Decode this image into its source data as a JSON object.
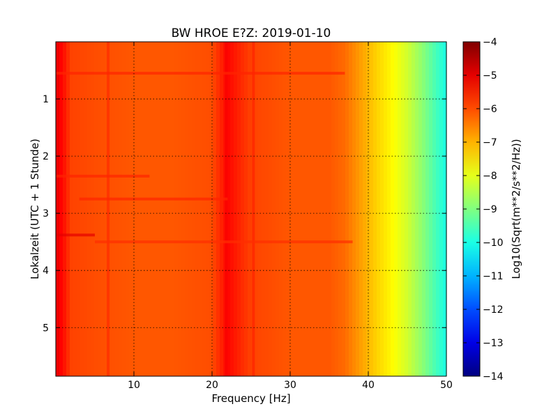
{
  "chart_data": {
    "type": "heatmap",
    "title": "BW HROE E?Z: 2019-01-10",
    "xlabel": "Frequency [Hz]",
    "ylabel": "Lokalzeit (UTC + 1 Stunde)",
    "xlim": [
      0,
      50
    ],
    "ylim": [
      5.85,
      0
    ],
    "x_ticks": [
      10,
      20,
      30,
      40,
      50
    ],
    "y_ticks": [
      1,
      2,
      3,
      4,
      5
    ],
    "grid": true,
    "colorbar": {
      "label": "Log10(Sqrt(m**2/s**2/Hz))",
      "range": [
        -14,
        -4
      ],
      "ticks": [
        -4,
        -5,
        -6,
        -7,
        -8,
        -9,
        -10,
        -11,
        -12,
        -13,
        -14
      ],
      "colormap": "jet"
    },
    "frequency_profile": {
      "frequencies_hz": [
        0,
        1,
        2,
        5,
        10,
        15,
        20,
        22,
        25,
        30,
        35,
        37,
        39,
        41,
        43,
        45,
        47,
        49,
        50
      ],
      "log10_amplitude": [
        -5.0,
        -5.4,
        -5.9,
        -6.0,
        -6.1,
        -6.1,
        -6.0,
        -5.3,
        -5.9,
        -6.1,
        -6.1,
        -6.3,
        -6.8,
        -7.3,
        -7.7,
        -8.2,
        -8.9,
        -9.7,
        -10.0
      ]
    },
    "narrow_band_lines": [
      {
        "frequency_hz": 21.8,
        "log10_amplitude": -5.2
      },
      {
        "frequency_hz": 25.3,
        "log10_amplitude": -5.6
      },
      {
        "frequency_hz": 6.7,
        "log10_amplitude": -5.7
      }
    ],
    "time_bands": [
      {
        "time_h": 0.55,
        "freq_range_hz": [
          0,
          37
        ],
        "log10_amplitude": -5.6
      },
      {
        "time_h": 2.35,
        "freq_range_hz": [
          0,
          12
        ],
        "log10_amplitude": -5.6
      },
      {
        "time_h": 2.75,
        "freq_range_hz": [
          3,
          22
        ],
        "log10_amplitude": -5.6
      },
      {
        "time_h": 3.38,
        "freq_range_hz": [
          0,
          5
        ],
        "log10_amplitude": -5.0
      },
      {
        "time_h": 3.5,
        "freq_range_hz": [
          5,
          38
        ],
        "log10_amplitude": -5.7
      }
    ]
  }
}
